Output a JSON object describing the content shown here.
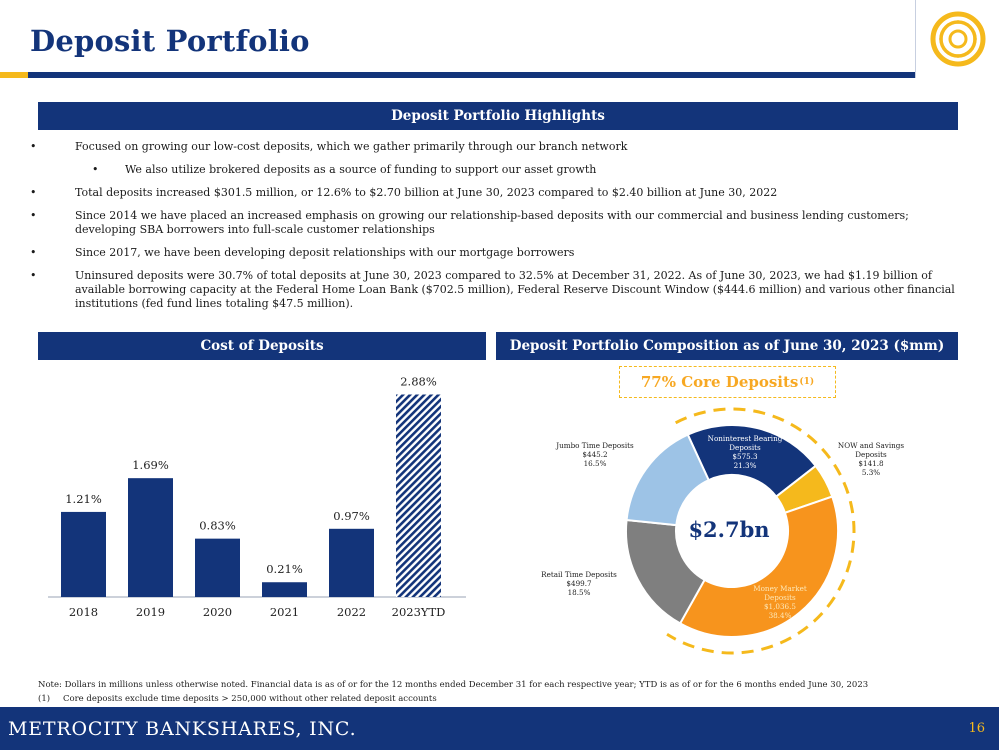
{
  "page": {
    "title": "Deposit Portfolio",
    "company": "METROCITY BANKSHARES, INC.",
    "page_number": "16"
  },
  "colors": {
    "navy": "#13347a",
    "gold": "#f5b91c",
    "orange": "#f7941d",
    "gray": "#7f7f7f",
    "light_blue": "#9dc3e6"
  },
  "highlights": {
    "header": "Deposit Portfolio Highlights",
    "bullet_symbol": "•",
    "items": [
      "Focused on growing our low-cost deposits, which we gather primarily through our branch network",
      "We also utilize brokered deposits as a source of funding to support our asset growth",
      "Total deposits increased $301.5 million, or 12.6% to $2.70 billion at June 30, 2023 compared to $2.40 billion at June 30, 2022",
      "Since 2014 we have placed an increased emphasis on growing our relationship-based deposits with our commercial and business lending customers; developing SBA borrowers into full-scale customer relationships",
      "Since 2017, we have been developing deposit relationships with our mortgage borrowers",
      "Uninsured deposits were 30.7% of total deposits at June 30, 2023 compared to 32.5% at December 31, 2022. As of June 30, 2023, we had $1.19 billion of available borrowing capacity at the Federal Home Loan Bank ($702.5 million), Federal Reserve Discount Window ($444.6 million) and various other financial institutions (fed fund lines totaling $47.5 million)."
    ]
  },
  "cost_section": {
    "header": "Cost of Deposits"
  },
  "composition_section": {
    "header": "Deposit Portfolio Composition as of June 30, 2023 ($mm)",
    "core_label": "77% Core Deposits",
    "core_sup": "(1)",
    "center_total": "$2.7bn",
    "slices": [
      {
        "name": "Noninterest Bearing Deposits",
        "lines": [
          "Noninterest Bearing",
          "Deposits",
          "$575.3",
          "21.3%"
        ]
      },
      {
        "name": "NOW and Savings Deposits",
        "lines": [
          "NOW and Savings",
          "Deposits",
          "$141.8",
          "5.3%"
        ]
      },
      {
        "name": "Money Market Deposits",
        "lines": [
          "Money Market",
          "Deposits",
          "$1,036.5",
          "38.4%"
        ]
      },
      {
        "name": "Retail Time Deposits",
        "lines": [
          "Retail Time Deposits",
          "$499.7",
          "18.5%"
        ]
      },
      {
        "name": "Jumbo Time Deposits",
        "lines": [
          "Jumbo Time Deposits",
          "$445.2",
          "16.5%"
        ]
      }
    ]
  },
  "chart_data": [
    {
      "type": "bar",
      "title": "Cost of Deposits",
      "categories": [
        "2018",
        "2019",
        "2020",
        "2021",
        "2022",
        "2023YTD"
      ],
      "values": [
        1.21,
        1.69,
        0.83,
        0.21,
        0.97,
        2.88
      ],
      "value_labels": [
        "1.21%",
        "1.69%",
        "0.83%",
        "0.21%",
        "0.97%",
        "2.88%"
      ],
      "ylim": [
        0,
        3.2
      ],
      "grid": false,
      "xlabel": "",
      "ylabel": ""
    },
    {
      "type": "pie",
      "title": "Deposit Portfolio Composition as of June 30, 2023 ($mm)",
      "categories": [
        "Noninterest Bearing Deposits",
        "NOW and Savings Deposits",
        "Money Market Deposits",
        "Retail Time Deposits",
        "Jumbo Time Deposits"
      ],
      "values": [
        575.3,
        141.8,
        1036.5,
        499.7,
        445.2
      ],
      "percent": [
        21.3,
        5.3,
        38.4,
        18.5,
        16.5
      ],
      "colors": [
        "#13347a",
        "#f5b91c",
        "#f7941d",
        "#7f7f7f",
        "#9dc3e6"
      ],
      "center_label": "$2.7bn",
      "donut": true
    }
  ],
  "footnotes": {
    "note": "Note: Dollars in millions unless otherwise noted. Financial data is as of or for the 12 months ended December 31 for each respective year; YTD is as of or for the 6 months ended June 30, 2023",
    "fn1_mark": "(1)",
    "fn1": "Core deposits exclude time deposits > 250,000 without other related deposit accounts"
  }
}
